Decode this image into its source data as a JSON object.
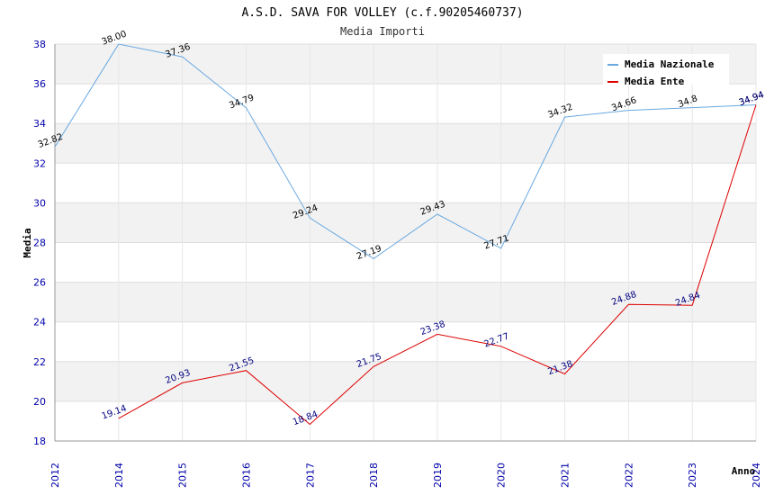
{
  "chart_data": {
    "type": "line",
    "title": "A.S.D. SAVA FOR VOLLEY (c.f.90205460737)",
    "subtitle": "Media Importi",
    "xlabel": "Anno",
    "ylabel": "Media",
    "ylim": [
      18,
      38
    ],
    "yticks": [
      18,
      20,
      22,
      24,
      26,
      28,
      30,
      32,
      34,
      36,
      38
    ],
    "x": [
      "2012",
      "2014",
      "2015",
      "2016",
      "2017",
      "2018",
      "2019",
      "2020",
      "2021",
      "2022",
      "2023",
      "2024"
    ],
    "grid": true,
    "legend_position": "top-right",
    "series": [
      {
        "name": "Media Nazionale",
        "color": "#6aa8e0",
        "values": [
          32.82,
          38.0,
          37.36,
          34.79,
          29.24,
          27.19,
          29.43,
          27.71,
          34.32,
          34.66,
          34.8,
          34.94
        ],
        "labels": [
          "32.82",
          "38.00",
          "37.36",
          "34.79",
          "29.24",
          "27.19",
          "29.43",
          "27.71",
          "34.32",
          "34.66",
          "34.8",
          "34.94"
        ]
      },
      {
        "name": "Media Ente",
        "color": "#dd0000",
        "values": [
          null,
          19.14,
          20.93,
          21.55,
          18.84,
          21.75,
          23.38,
          22.77,
          21.38,
          24.88,
          24.84,
          34.94
        ],
        "labels": [
          null,
          "19.14",
          "20.93",
          "21.55",
          "18.84",
          "21.75",
          "23.38",
          "22.77",
          "21.38",
          "24.88",
          "24.84",
          "34.94"
        ]
      }
    ]
  }
}
